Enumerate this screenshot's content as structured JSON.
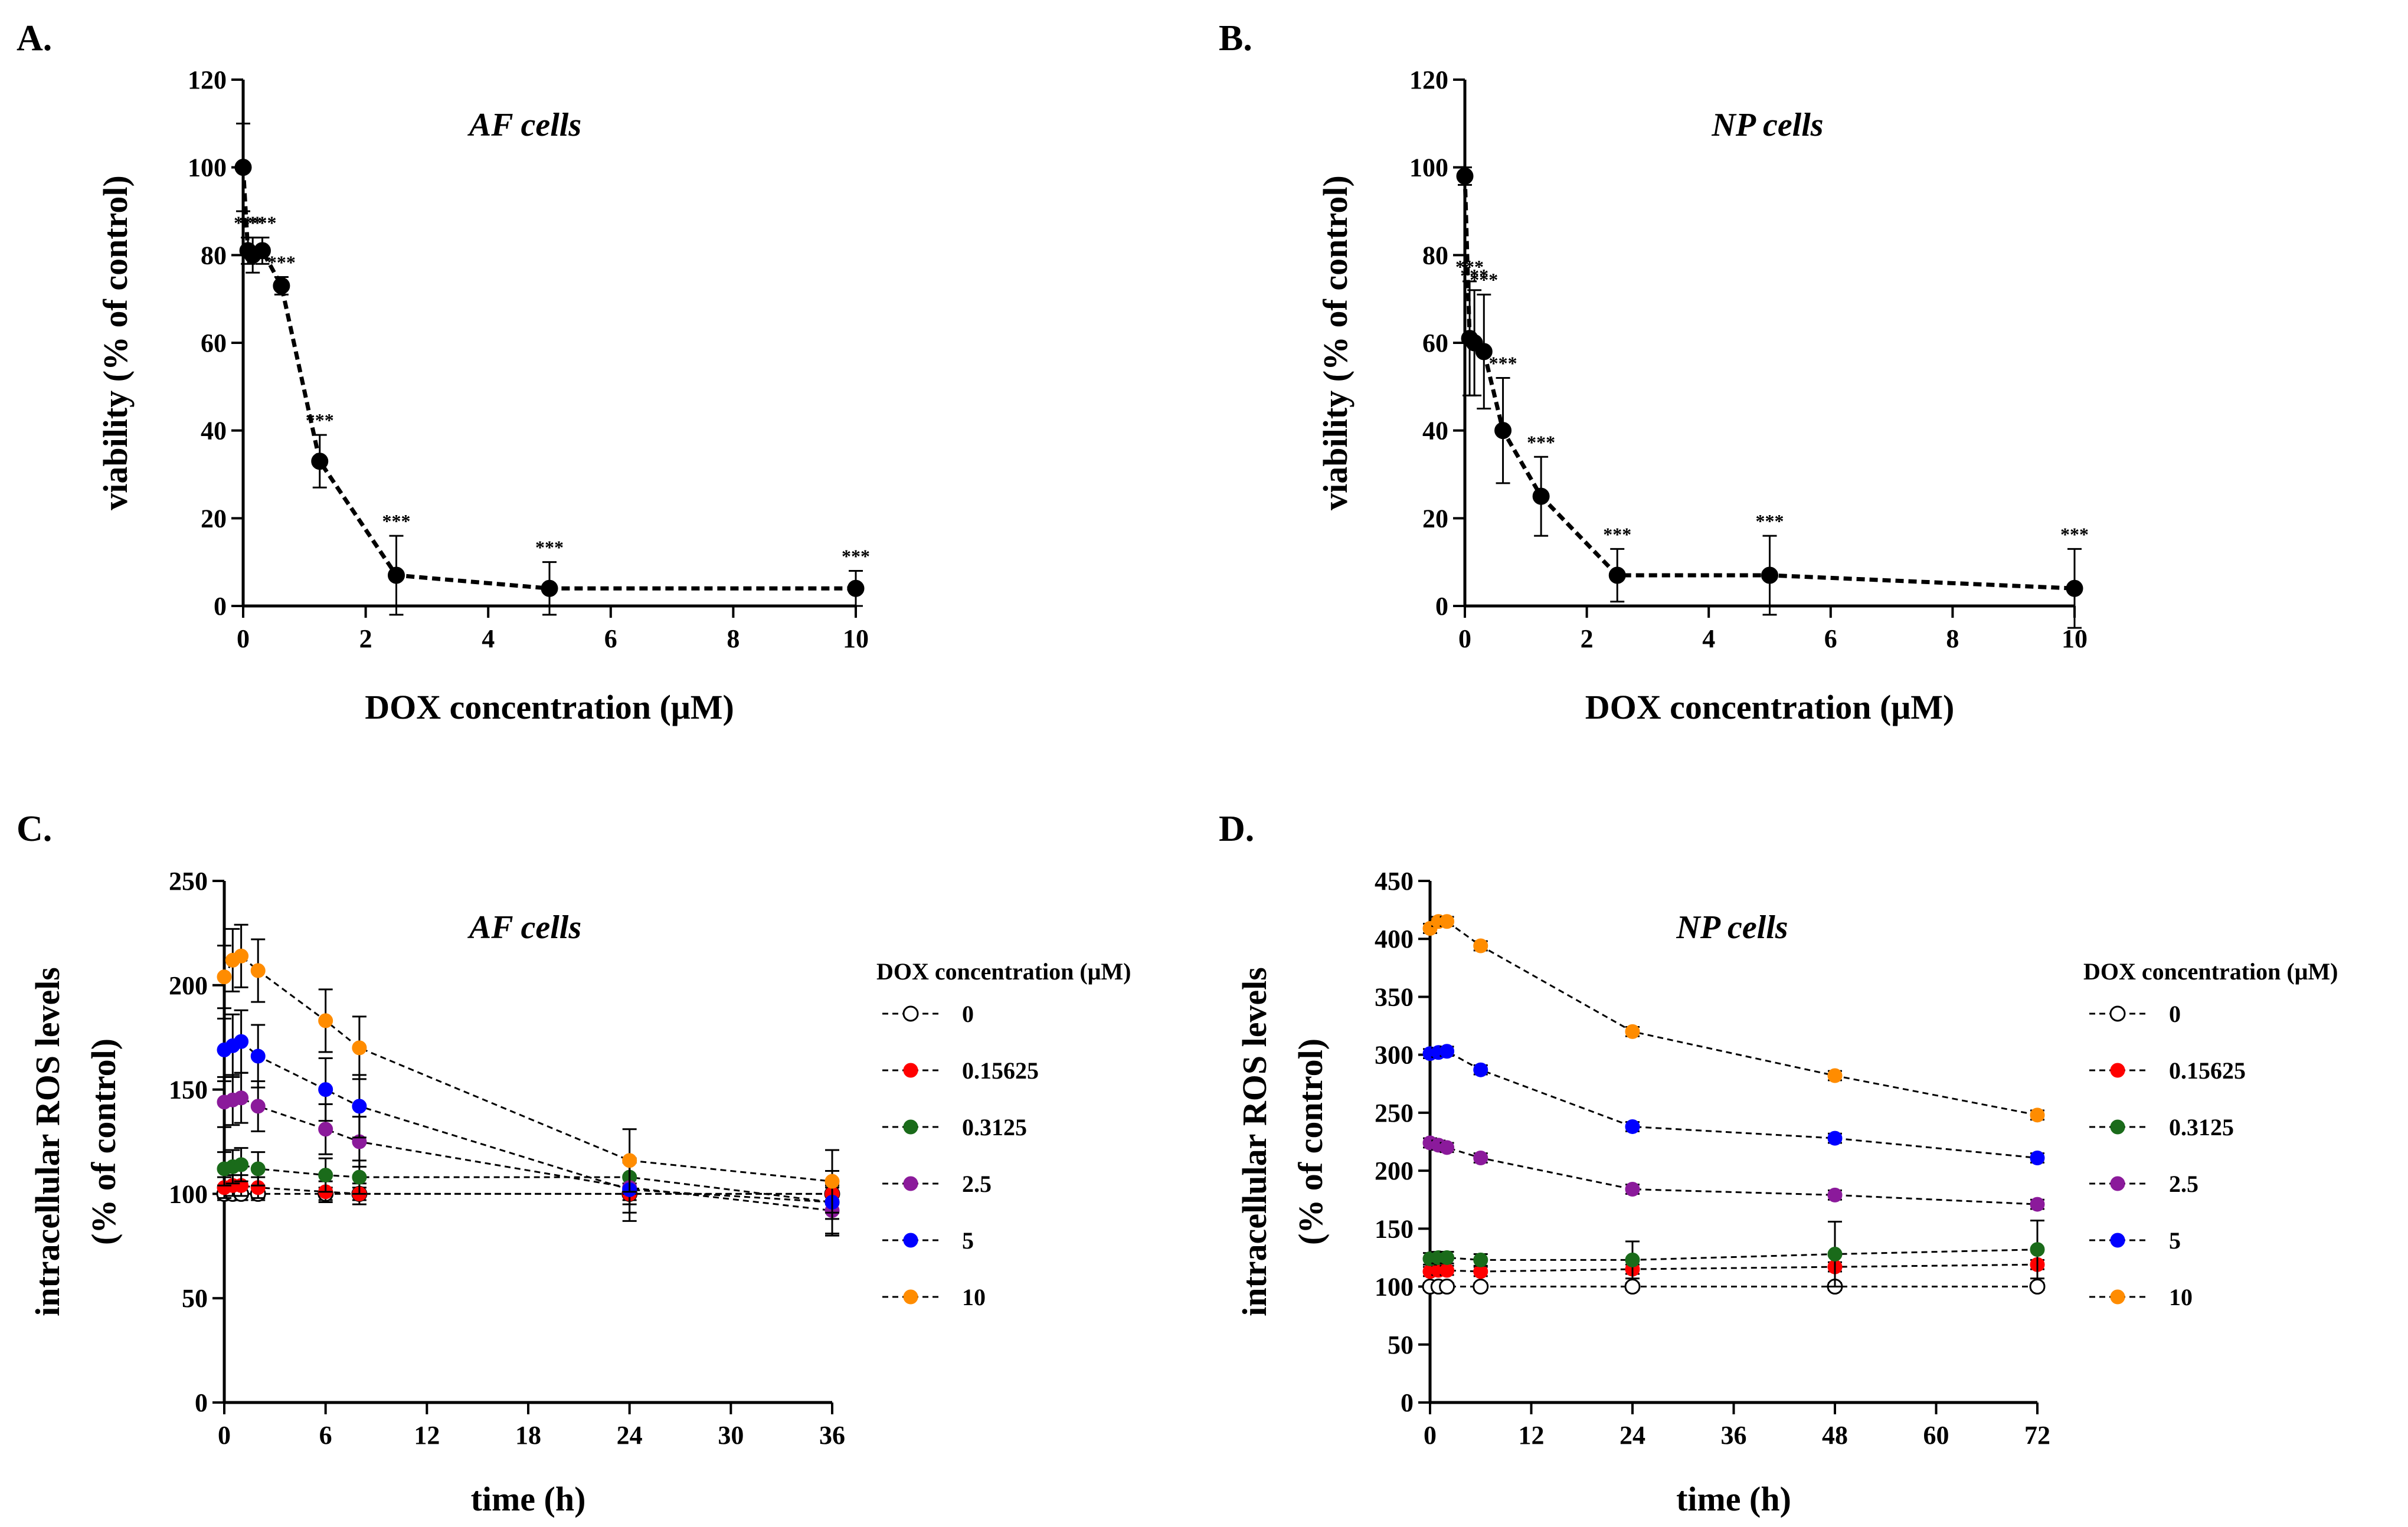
{
  "chart_data": [
    {
      "panel": "A.",
      "type": "line",
      "title": "AF cells",
      "xlabel": "DOX concentration (μM)",
      "ylabel": "viability (% of control)",
      "xlim": [
        0,
        10
      ],
      "ylim": [
        0,
        120
      ],
      "xticks": [
        0,
        2,
        4,
        6,
        8,
        10
      ],
      "yticks": [
        0,
        20,
        40,
        60,
        80,
        100,
        120
      ],
      "series": [
        {
          "name": "viability",
          "color": "#000000",
          "x": [
            0,
            0.078,
            0.156,
            0.3125,
            0.625,
            1.25,
            2.5,
            5,
            10
          ],
          "y": [
            100,
            81,
            80,
            81,
            73,
            33,
            7,
            4,
            4
          ],
          "err": [
            10,
            3,
            4,
            3,
            2,
            6,
            9,
            6,
            4
          ],
          "sig": [
            "",
            "***",
            "***",
            "***",
            "***",
            "***",
            "***",
            "***",
            "***"
          ]
        }
      ]
    },
    {
      "panel": "B.",
      "type": "line",
      "title": "NP cells",
      "xlabel": "DOX concentration (μM)",
      "ylabel": "viability (% of control)",
      "xlim": [
        0,
        10
      ],
      "ylim": [
        0,
        120
      ],
      "xticks": [
        0,
        2,
        4,
        6,
        8,
        10
      ],
      "yticks": [
        0,
        20,
        40,
        60,
        80,
        100,
        120
      ],
      "series": [
        {
          "name": "viability",
          "color": "#000000",
          "x": [
            0,
            0.078,
            0.156,
            0.3125,
            0.625,
            1.25,
            2.5,
            5,
            10
          ],
          "y": [
            98,
            61,
            60,
            58,
            40,
            25,
            7,
            7,
            4
          ],
          "err": [
            2,
            13,
            12,
            13,
            12,
            9,
            6,
            9,
            9
          ],
          "sig": [
            "",
            "***",
            "***",
            "***",
            "***",
            "***",
            "***",
            "***",
            "***"
          ]
        }
      ]
    },
    {
      "panel": "C.",
      "type": "line",
      "title": "AF cells",
      "xlabel": "time (h)",
      "ylabel": "intracellular ROS levels",
      "ylabel2": "(% of control)",
      "xlim": [
        0,
        36
      ],
      "ylim": [
        0,
        250
      ],
      "xticks": [
        0,
        6,
        12,
        18,
        24,
        30,
        36
      ],
      "yticks": [
        0,
        50,
        100,
        150,
        200,
        250
      ],
      "legend_title": "DOX concentration (μM)",
      "series": [
        {
          "name": "0",
          "color": "#000000",
          "open": true,
          "x": [
            0,
            0.5,
            1,
            2,
            6,
            8,
            24,
            36
          ],
          "y": [
            100,
            100,
            100,
            100,
            100,
            100,
            100,
            100
          ],
          "err": [
            3,
            3,
            3,
            3,
            3,
            3,
            3,
            3
          ]
        },
        {
          "name": "0.15625",
          "color": "#ff0000",
          "x": [
            0,
            0.5,
            1,
            2,
            6,
            8,
            24,
            36
          ],
          "y": [
            103,
            104,
            104,
            103,
            101,
            100,
            100,
            100
          ],
          "err": [
            5,
            5,
            5,
            5,
            5,
            5,
            5,
            5
          ]
        },
        {
          "name": "0.3125",
          "color": "#1a6b1a",
          "x": [
            0,
            0.5,
            1,
            2,
            6,
            8,
            24,
            36
          ],
          "y": [
            112,
            113,
            114,
            112,
            109,
            108,
            108,
            96
          ],
          "err": [
            8,
            8,
            8,
            8,
            8,
            8,
            8,
            8
          ]
        },
        {
          "name": "2.5",
          "color": "#8b1a9b",
          "x": [
            0,
            0.5,
            1,
            2,
            6,
            8,
            24,
            36
          ],
          "y": [
            144,
            145,
            146,
            142,
            131,
            125,
            103,
            92
          ],
          "err": [
            12,
            12,
            12,
            12,
            12,
            12,
            12,
            12
          ]
        },
        {
          "name": "5",
          "color": "#0000ff",
          "x": [
            0,
            0.5,
            1,
            2,
            6,
            8,
            24,
            36
          ],
          "y": [
            169,
            171,
            173,
            166,
            150,
            142,
            102,
            96
          ],
          "err": [
            15,
            15,
            15,
            15,
            15,
            15,
            15,
            15
          ]
        },
        {
          "name": "10",
          "color": "#ff8c00",
          "x": [
            0,
            0.5,
            1,
            2,
            6,
            8,
            24,
            36
          ],
          "y": [
            204,
            212,
            214,
            207,
            183,
            170,
            116,
            106
          ],
          "err": [
            15,
            15,
            15,
            15,
            15,
            15,
            15,
            15
          ]
        }
      ]
    },
    {
      "panel": "D.",
      "type": "line",
      "title": "NP cells",
      "xlabel": "time (h)",
      "ylabel": "intracellular ROS levels",
      "ylabel2": "(% of control)",
      "xlim": [
        0,
        72
      ],
      "ylim": [
        0,
        450
      ],
      "xticks": [
        0,
        12,
        24,
        36,
        48,
        60,
        72
      ],
      "yticks": [
        0,
        50,
        100,
        150,
        200,
        250,
        300,
        350,
        400,
        450
      ],
      "legend_title": "DOX concentration (μM)",
      "series": [
        {
          "name": "0",
          "color": "#000000",
          "open": true,
          "x": [
            0,
            1,
            2,
            6,
            24,
            48,
            72
          ],
          "y": [
            100,
            100,
            100,
            100,
            100,
            100,
            100
          ],
          "err": [
            3,
            3,
            3,
            3,
            3,
            3,
            3
          ]
        },
        {
          "name": "0.15625",
          "color": "#ff0000",
          "x": [
            0,
            1,
            2,
            6,
            24,
            48,
            72
          ],
          "y": [
            113,
            114,
            114,
            113,
            115,
            117,
            119
          ],
          "err": [
            4,
            4,
            4,
            4,
            4,
            4,
            4
          ]
        },
        {
          "name": "0.3125",
          "color": "#1a6b1a",
          "x": [
            0,
            1,
            2,
            6,
            24,
            48,
            72
          ],
          "y": [
            124,
            125,
            125,
            123,
            123,
            128,
            132
          ],
          "err": [
            5,
            5,
            5,
            5,
            16,
            28,
            25
          ]
        },
        {
          "name": "2.5",
          "color": "#8b1a9b",
          "x": [
            0,
            1,
            2,
            6,
            24,
            48,
            72
          ],
          "y": [
            224,
            222,
            220,
            211,
            184,
            179,
            171
          ],
          "err": [
            4,
            4,
            4,
            4,
            4,
            4,
            4
          ]
        },
        {
          "name": "5",
          "color": "#0000ff",
          "x": [
            0,
            1,
            2,
            6,
            24,
            48,
            72
          ],
          "y": [
            301,
            302,
            303,
            287,
            238,
            228,
            211
          ],
          "err": [
            4,
            4,
            4,
            4,
            4,
            4,
            4
          ]
        },
        {
          "name": "10",
          "color": "#ff8c00",
          "x": [
            0,
            1,
            2,
            6,
            24,
            48,
            72
          ],
          "y": [
            409,
            415,
            415,
            394,
            320,
            282,
            248
          ],
          "err": [
            4,
            4,
            4,
            4,
            4,
            4,
            4
          ]
        }
      ]
    }
  ]
}
